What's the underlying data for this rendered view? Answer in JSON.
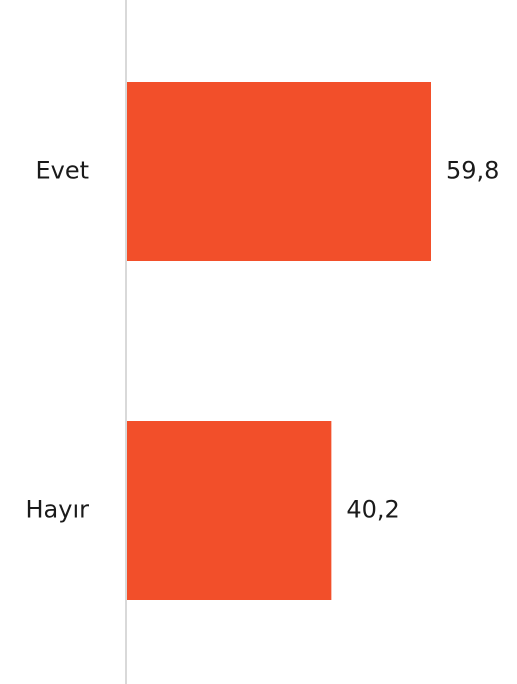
{
  "chart_data": {
    "type": "bar",
    "orientation": "horizontal",
    "categories": [
      "Evet",
      "Hayır"
    ],
    "values": [
      59.8,
      40.2
    ],
    "value_labels": [
      "59,8",
      "40,2"
    ],
    "color": "#f24f2a"
  }
}
